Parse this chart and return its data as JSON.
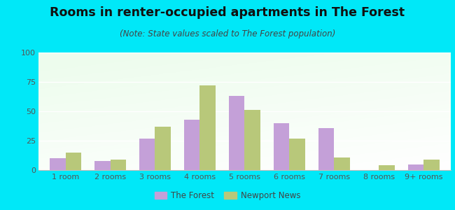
{
  "title": "Rooms in renter-occupied apartments in The Forest",
  "subtitle": "(Note: State values scaled to The Forest population)",
  "categories": [
    "1 room",
    "2 rooms",
    "3 rooms",
    "4 rooms",
    "5 rooms",
    "6 rooms",
    "7 rooms",
    "8 rooms",
    "9+ rooms"
  ],
  "the_forest": [
    10,
    8,
    27,
    43,
    63,
    40,
    36,
    0,
    5
  ],
  "newport_news": [
    15,
    9,
    37,
    72,
    51,
    27,
    11,
    4,
    9
  ],
  "forest_color": "#c4a0d8",
  "newport_color": "#b8c87a",
  "background_outer": "#00e8f8",
  "ylim": [
    0,
    100
  ],
  "yticks": [
    0,
    25,
    50,
    75,
    100
  ],
  "legend_forest": "The Forest",
  "legend_newport": "Newport News",
  "title_fontsize": 12.5,
  "subtitle_fontsize": 8.5,
  "tick_fontsize": 8,
  "bar_width": 0.35
}
